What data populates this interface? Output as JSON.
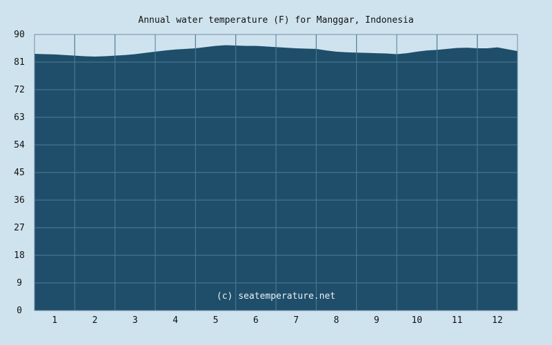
{
  "chart_data": {
    "type": "area",
    "title": "Annual water temperature (F) for Manggar, Indonesia",
    "xlabel": "",
    "ylabel": "",
    "watermark": "(c) seatemperature.net",
    "categories": [
      "1",
      "2",
      "3",
      "4",
      "5",
      "6",
      "7",
      "8",
      "9",
      "10",
      "11",
      "12"
    ],
    "xlim": [
      0,
      12
    ],
    "ylim": [
      0,
      90
    ],
    "y_ticks": [
      "0",
      "9",
      "18",
      "27",
      "36",
      "45",
      "54",
      "63",
      "72",
      "81",
      "90"
    ],
    "grid": true,
    "colors": {
      "background": "#cfe3ee",
      "plot": "#1f4e6a",
      "grid": "#4f7d98",
      "frame": "#6f8fa4"
    },
    "series": [
      {
        "x": [
          0.0,
          0.25,
          0.5,
          0.75,
          1.0,
          1.25,
          1.5,
          1.75,
          2.0,
          2.25,
          2.5,
          2.75,
          3.0,
          3.25,
          3.5,
          3.75,
          4.0,
          4.25,
          4.5,
          4.75,
          5.0,
          5.25,
          5.5,
          5.75,
          6.0,
          6.25,
          6.5,
          6.75,
          7.0,
          7.25,
          7.5,
          7.75,
          8.0,
          8.25,
          8.5,
          8.75,
          9.0,
          9.25,
          9.5,
          9.75,
          10.0,
          10.25,
          10.5,
          10.75,
          11.0,
          11.25,
          11.5,
          11.75,
          12.0
        ],
        "values": [
          83.7,
          83.6,
          83.5,
          83.3,
          83.1,
          82.9,
          82.8,
          82.9,
          83.1,
          83.3,
          83.6,
          84.0,
          84.4,
          84.8,
          85.1,
          85.3,
          85.5,
          85.9,
          86.3,
          86.5,
          86.4,
          86.3,
          86.3,
          86.1,
          85.9,
          85.7,
          85.5,
          85.4,
          85.3,
          84.8,
          84.4,
          84.2,
          84.1,
          84.0,
          83.9,
          83.8,
          83.6,
          83.9,
          84.4,
          84.8,
          85.0,
          85.3,
          85.6,
          85.7,
          85.5,
          85.5,
          85.8,
          85.2,
          84.6
        ]
      }
    ]
  }
}
